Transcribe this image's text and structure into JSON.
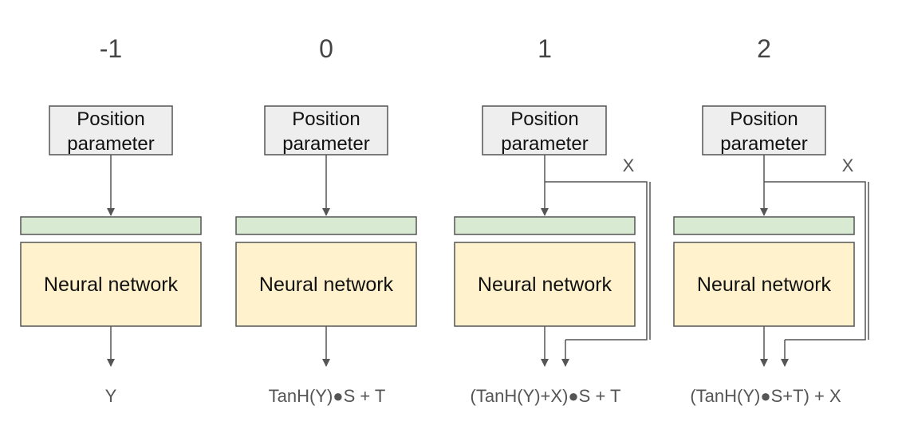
{
  "columns": [
    {
      "label": "-1",
      "position_box": {
        "line1": "Position",
        "line2": "parameter"
      },
      "network_label": "Neural network",
      "output": "Y",
      "skip_input": null
    },
    {
      "label": "0",
      "position_box": {
        "line1": "Position",
        "line2": "parameter"
      },
      "network_label": "Neural network",
      "output": "TanH(Y)●S + T",
      "skip_input": null
    },
    {
      "label": "1",
      "position_box": {
        "line1": "Position",
        "line2": "parameter"
      },
      "network_label": "Neural network",
      "output": "(TanH(Y)+X)●S + T",
      "skip_input": "X"
    },
    {
      "label": "2",
      "position_box": {
        "line1": "Position",
        "line2": "parameter"
      },
      "network_label": "Neural network",
      "output": "(TanH(Y)●S+T) + X",
      "skip_input": "X"
    }
  ],
  "colors": {
    "position_box_fill": "#eeeeee",
    "bar_fill": "#d9ead3",
    "network_fill": "#fff2cc",
    "stroke": "#555555"
  }
}
